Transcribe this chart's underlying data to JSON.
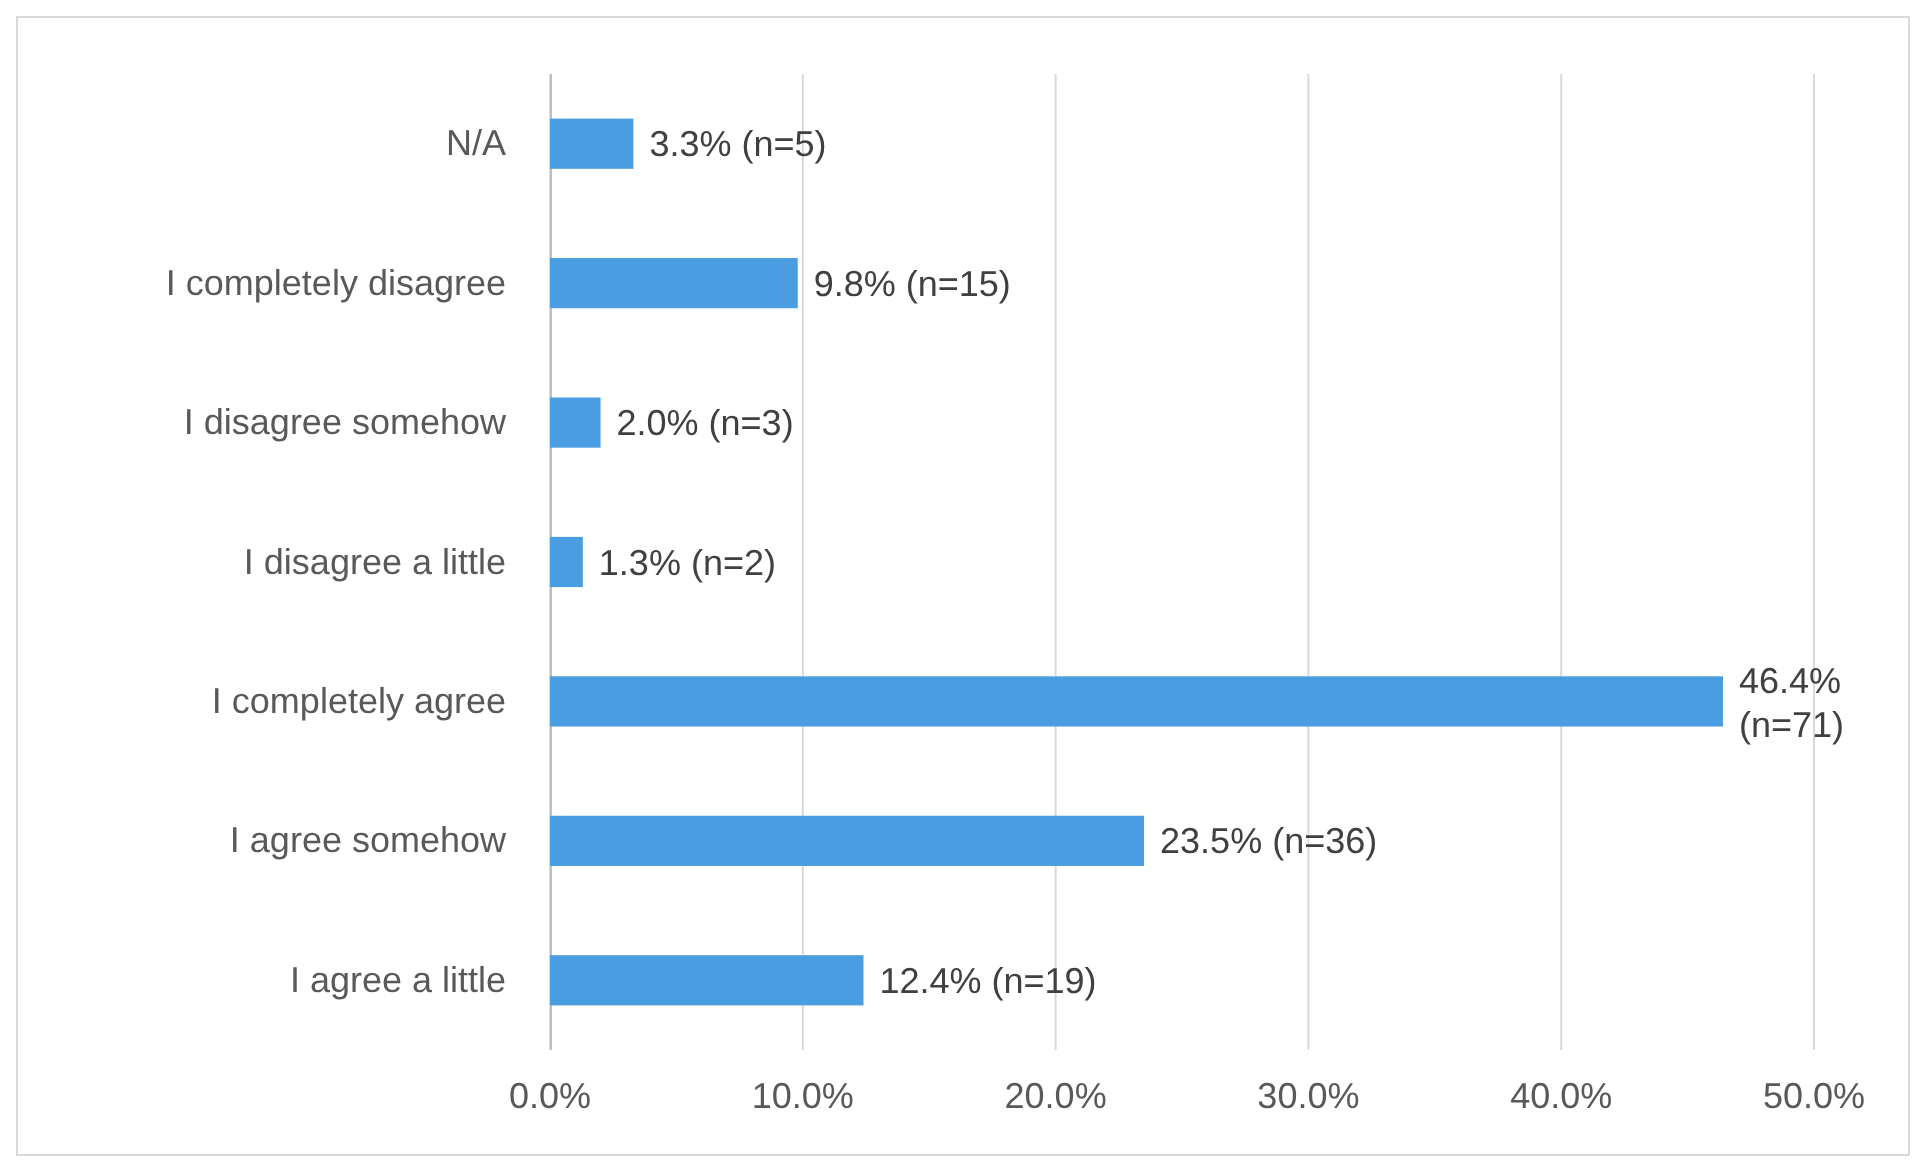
{
  "chart_data": {
    "type": "bar",
    "orientation": "horizontal",
    "categories": [
      "N/A",
      "I completely disagree",
      "I disagree somehow",
      "I disagree a little",
      "I completely agree",
      "I agree somehow",
      "I agree a little"
    ],
    "values": [
      3.3,
      9.8,
      2.0,
      1.3,
      46.4,
      23.5,
      12.4
    ],
    "color": "#4a9de0",
    "value_labels": [
      "3.3% (n=5)",
      "9.8% (n=15)",
      "2.0% (n=3)",
      "1.3% (n=2)",
      "46.4% (n=71)",
      "23.5% (n=36)",
      "12.4% (n=19)"
    ],
    "xlim": [
      0,
      50
    ],
    "xticks": [
      {
        "value": 0,
        "label": "0.0%"
      },
      {
        "value": 10,
        "label": "10.0%"
      },
      {
        "value": 20,
        "label": "20.0%"
      },
      {
        "value": 30,
        "label": "30.0%"
      },
      {
        "value": 40,
        "label": "40.0%"
      },
      {
        "value": 50,
        "label": "50.0%"
      }
    ],
    "grid": "x"
  }
}
